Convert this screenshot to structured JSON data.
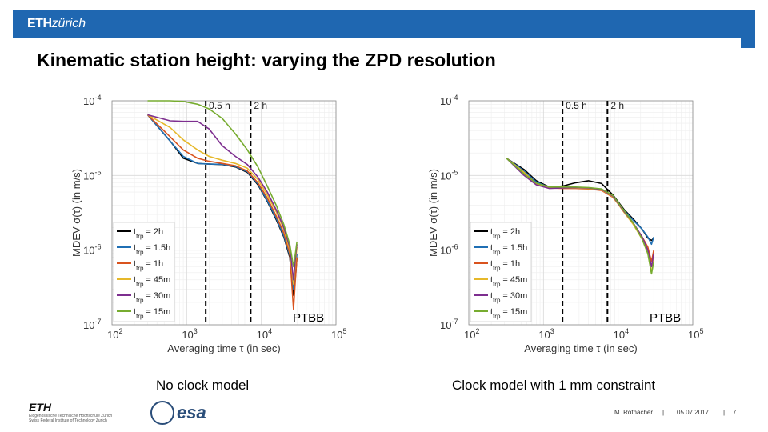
{
  "header": {
    "logo_bold": "ETH",
    "logo_italic": "zürich"
  },
  "slide": {
    "title": "Kinematic station height: varying the ZPD resolution",
    "caption_left": "No clock model",
    "caption_right": "Clock model with 1 mm constraint"
  },
  "footer": {
    "eth_logo": "ETH",
    "eth_sub1": "Eidgenössische Technische Hochschule Zürich",
    "eth_sub2": "Swiss Federal Institute of Technology Zurich",
    "esa_label": "esa",
    "author": "M. Rothacher",
    "sep1": "|",
    "date": "05.07.2017",
    "sep2": "|",
    "page": "7"
  },
  "colors": {
    "header_blue": "#1f67b1",
    "series": [
      "#000000",
      "#1f6fb4",
      "#d9531e",
      "#e6b82a",
      "#7d2e8f",
      "#77ac30"
    ]
  },
  "chart_data": [
    {
      "type": "line",
      "scale": "log-log",
      "xlabel": "Averaging time τ (in sec)",
      "ylabel": "MDEV σ(τ) (in m/s)",
      "xlim": [
        100,
        100000
      ],
      "ylim": [
        1e-07,
        0.0001
      ],
      "x_ticks": [
        {
          "base": "10",
          "exp": "2"
        },
        {
          "base": "10",
          "exp": "3"
        },
        {
          "base": "10",
          "exp": "4"
        },
        {
          "base": "10",
          "exp": "5"
        }
      ],
      "y_ticks": [
        {
          "base": "10",
          "exp": "-7"
        },
        {
          "base": "10",
          "exp": "-6"
        },
        {
          "base": "10",
          "exp": "-5"
        },
        {
          "base": "10",
          "exp": "-4"
        }
      ],
      "vlines": [
        {
          "x": 1800,
          "label": "0.5 h"
        },
        {
          "x": 7200,
          "label": "2 h"
        }
      ],
      "annotation": "PTBB",
      "x": [
        300,
        600,
        900,
        1400,
        2000,
        3000,
        4500,
        6500,
        9000,
        12000,
        16000,
        20000,
        24000,
        27000,
        29000,
        30000
      ],
      "series": [
        {
          "name": "t",
          "sub": "trp",
          "suffix": "= 2h",
          "values": [
            6.5e-05,
            2.9e-05,
            1.7e-05,
            1.45e-05,
            1.42e-05,
            1.4e-05,
            1.3e-05,
            1.1e-05,
            7.5e-06,
            4.5e-06,
            2.5e-06,
            1.5e-06,
            8e-07,
            2.5e-07,
            5e-07,
            8e-07
          ]
        },
        {
          "name": "t",
          "sub": "trp",
          "suffix": "= 1.5h",
          "values": [
            6.5e-05,
            2.9e-05,
            1.8e-05,
            1.45e-05,
            1.42e-05,
            1.41e-05,
            1.32e-05,
            1.12e-05,
            7.7e-06,
            4.6e-06,
            2.6e-06,
            1.55e-06,
            8.5e-07,
            3e-07,
            6e-07,
            9e-07
          ]
        },
        {
          "name": "t",
          "sub": "trp",
          "suffix": "= 1h",
          "values": [
            6.5e-05,
            3.3e-05,
            2.2e-05,
            1.7e-05,
            1.55e-05,
            1.45e-05,
            1.35e-05,
            1.15e-05,
            8e-06,
            5e-06,
            2.8e-06,
            1.7e-06,
            9e-07,
            1.6e-07,
            5e-07,
            8e-07
          ]
        },
        {
          "name": "t",
          "sub": "trp",
          "suffix": "= 45m",
          "values": [
            6.5e-05,
            4.4e-05,
            3e-05,
            2.2e-05,
            1.8e-05,
            1.6e-05,
            1.45e-05,
            1.25e-05,
            8.8e-06,
            5.5e-06,
            3.2e-06,
            1.9e-06,
            1e-06,
            3.5e-07,
            8e-07,
            1.1e-06
          ]
        },
        {
          "name": "t",
          "sub": "trp",
          "suffix": "= 30m",
          "values": [
            6.5e-05,
            5.4e-05,
            5.3e-05,
            5.3e-05,
            4.2e-05,
            2.5e-05,
            1.8e-05,
            1.4e-05,
            9.5e-06,
            6e-06,
            3.4e-06,
            2e-06,
            1.1e-06,
            4e-07,
            9e-07,
            1.2e-06
          ]
        },
        {
          "name": "t",
          "sub": "trp",
          "suffix": "= 15m",
          "values": [
            0.0001,
            0.0001,
            9.8e-05,
            9e-05,
            7.8e-05,
            5.8e-05,
            3.6e-05,
            2.2e-05,
            1.3e-05,
            7.2e-06,
            3.9e-06,
            2.2e-06,
            1.2e-06,
            6e-07,
            1e-06,
            1.3e-06
          ]
        }
      ]
    },
    {
      "type": "line",
      "scale": "log-log",
      "xlabel": "Averaging time τ (in sec)",
      "ylabel": "MDEV σ(τ) (in m/s)",
      "xlim": [
        100,
        100000
      ],
      "ylim": [
        1e-07,
        0.0001
      ],
      "x_ticks": [
        {
          "base": "10",
          "exp": "2"
        },
        {
          "base": "10",
          "exp": "3"
        },
        {
          "base": "10",
          "exp": "4"
        },
        {
          "base": "10",
          "exp": "5"
        }
      ],
      "y_ticks": [
        {
          "base": "10",
          "exp": "-7"
        },
        {
          "base": "10",
          "exp": "-6"
        },
        {
          "base": "10",
          "exp": "-5"
        },
        {
          "base": "10",
          "exp": "-4"
        }
      ],
      "vlines": [
        {
          "x": 1800,
          "label": "0.5 h"
        },
        {
          "x": 7200,
          "label": "2 h"
        }
      ],
      "annotation": "PTBB",
      "x": [
        320,
        550,
        800,
        1200,
        1800,
        2700,
        4000,
        6000,
        8500,
        12000,
        16000,
        21000,
        25000,
        28000,
        30000
      ],
      "series": [
        {
          "name": "t",
          "sub": "trp",
          "suffix": "= 2h",
          "values": [
            1.7e-05,
            1.2e-05,
            8.5e-06,
            7e-06,
            7.2e-06,
            8e-06,
            8.5e-06,
            7.8e-06,
            5.5e-06,
            3.5e-06,
            2.6e-06,
            1.9e-06,
            1.45e-06,
            1.35e-06,
            1.45e-06
          ]
        },
        {
          "name": "t",
          "sub": "trp",
          "suffix": "= 1.5h",
          "values": [
            1.7e-05,
            1.15e-05,
            8.2e-06,
            6.9e-06,
            6.8e-06,
            6.9e-06,
            6.8e-06,
            6.5e-06,
            5.3e-06,
            3.4e-06,
            2.5e-06,
            1.9e-06,
            1.5e-06,
            1.2e-06,
            1.5e-06
          ]
        },
        {
          "name": "t",
          "sub": "trp",
          "suffix": "= 1h",
          "values": [
            1.7e-05,
            1.1e-05,
            7.8e-06,
            6.8e-06,
            6.7e-06,
            6.7e-06,
            6.6e-06,
            6.3e-06,
            5.1e-06,
            3.3e-06,
            2.3e-06,
            1.5e-06,
            1.1e-06,
            7e-07,
            1e-06
          ]
        },
        {
          "name": "t",
          "sub": "trp",
          "suffix": "= 45m",
          "values": [
            1.7e-05,
            1.1e-05,
            7.7e-06,
            6.8e-06,
            6.8e-06,
            6.8e-06,
            6.7e-06,
            6.4e-06,
            5.2e-06,
            3.2e-06,
            2.2e-06,
            1.4e-06,
            9e-07,
            5e-07,
            8e-07
          ]
        },
        {
          "name": "t",
          "sub": "trp",
          "suffix": "= 30m",
          "values": [
            1.7e-05,
            1e-05,
            7.5e-06,
            6.7e-06,
            6.8e-06,
            6.9e-06,
            6.8e-06,
            6.5e-06,
            5.3e-06,
            3.3e-06,
            2.3e-06,
            1.5e-06,
            1e-06,
            6e-07,
            9e-07
          ]
        },
        {
          "name": "t",
          "sub": "trp",
          "suffix": "= 15m",
          "values": [
            1.7e-05,
            1.05e-05,
            7.9e-06,
            7e-06,
            7e-06,
            7e-06,
            6.9e-06,
            6.6e-06,
            5.4e-06,
            3.4e-06,
            2.3e-06,
            1.4e-06,
            9e-07,
            4.8e-07,
            7e-07
          ]
        }
      ]
    }
  ]
}
